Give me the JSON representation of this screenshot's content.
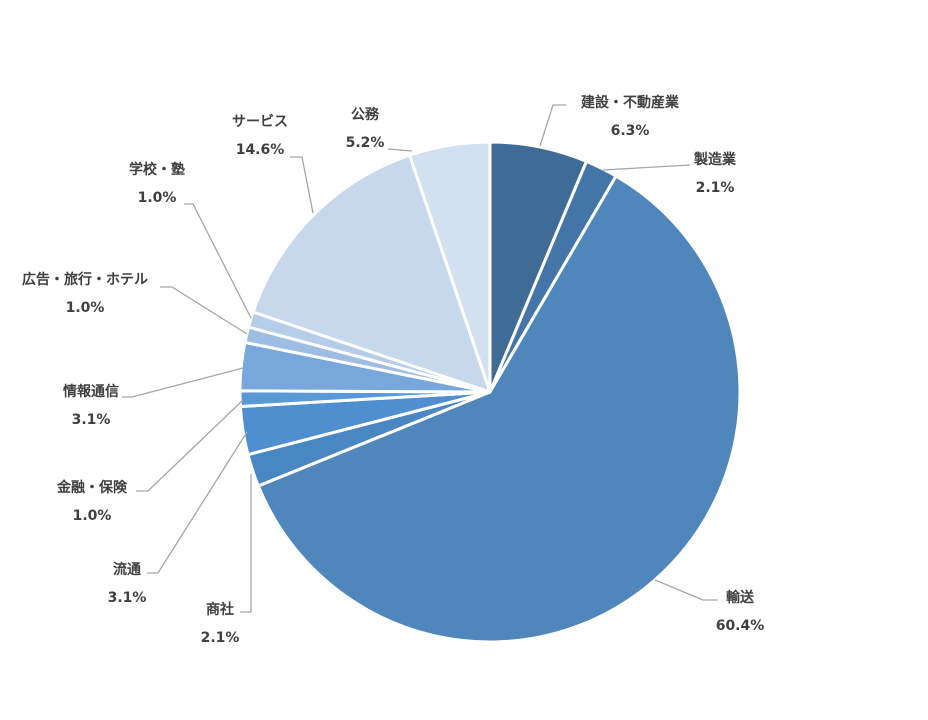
{
  "chart_data": {
    "type": "pie",
    "categories": [
      "建設・不動産業",
      "製造業",
      "輸送",
      "商社",
      "流通",
      "金融・保険",
      "情報通信",
      "広告・旅行・ホテル",
      "学校・塾",
      "サービス",
      "公務"
    ],
    "values": [
      6.3,
      2.1,
      60.4,
      2.1,
      3.1,
      1.0,
      3.1,
      1.0,
      1.0,
      14.6,
      5.2
    ],
    "value_labels": [
      "6.3%",
      "2.1%",
      "60.4%",
      "2.1%",
      "3.1%",
      "1.0%",
      "3.1%",
      "1.0%",
      "1.0%",
      "14.6%",
      "5.2%"
    ],
    "colors": [
      "#3f6c97",
      "#4475a8",
      "#4f86bb",
      "#4a86c2",
      "#4f8fd0",
      "#5a99d8",
      "#78a7dc",
      "#9dbde3",
      "#b6cde9",
      "#c7d8ec",
      "#d3e0f0"
    ]
  }
}
